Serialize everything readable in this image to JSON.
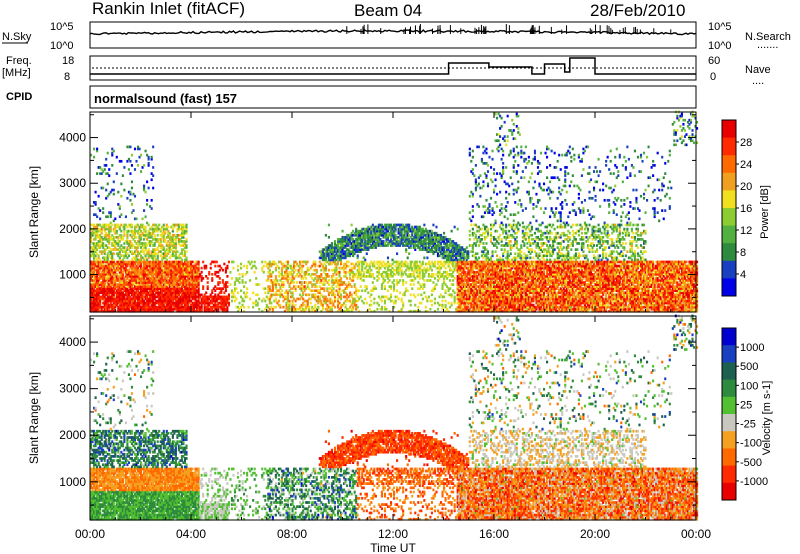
{
  "header": {
    "station": "Rankin Inlet (fitACF)",
    "beam": "Beam 04",
    "date": "28/Feb/2010"
  },
  "noise_panel": {
    "left_label": "N.Sky",
    "left_ticks": [
      "10^5",
      "10^0"
    ],
    "right_ticks": [
      "10^5",
      "10^0"
    ],
    "right_label": "N.Search",
    "right_legend": "......."
  },
  "freq_panel": {
    "left_label_1": "Freq.",
    "left_label_2": "[MHz]",
    "left_ticks": [
      "18",
      "8"
    ],
    "right_ticks": [
      "60",
      "0"
    ],
    "right_label": "Nave",
    "right_legend": "...."
  },
  "cpid": {
    "label": "CPID",
    "value": "normalsound (fast) 157"
  },
  "colors": {
    "power_scale": [
      "#0000e8",
      "#1840c0",
      "#2e8a3c",
      "#52b040",
      "#8ccc30",
      "#f0e020",
      "#f0a020",
      "#ff6a00",
      "#ff2a00",
      "#e80000"
    ],
    "velocity_scale": [
      "#e80000",
      "#ff2a00",
      "#ff6a00",
      "#f5a020",
      "#c8c8c0",
      "#52c030",
      "#2e8a3c",
      "#1e6050",
      "#1840c0",
      "#0000d0"
    ]
  },
  "chart_data": {
    "type": "heatmap",
    "x_axis": {
      "label": "Time UT",
      "ticks": [
        "00:00",
        "04:00",
        "08:00",
        "12:00",
        "16:00",
        "20:00",
        "00:00"
      ],
      "range_hours": [
        0,
        24
      ]
    },
    "y_axis": {
      "label": "Slant Range [km]",
      "ticks": [
        "1000",
        "2000",
        "3000",
        "4000"
      ],
      "range_km": [
        180,
        4560
      ]
    },
    "panels": [
      {
        "name": "Power",
        "colorbar_label": "Power [dB]",
        "colorbar_ticks": [
          "28",
          "24",
          "20",
          "16",
          "12",
          "8",
          "4"
        ],
        "range": [
          0,
          30
        ]
      },
      {
        "name": "Velocity",
        "colorbar_label": "Velocity [m s-1]",
        "colorbar_ticks": [
          "1000",
          "500",
          "100",
          "25",
          "-25",
          "-100",
          "-500",
          "-1000"
        ],
        "range": [
          -1000,
          1000
        ]
      }
    ]
  }
}
